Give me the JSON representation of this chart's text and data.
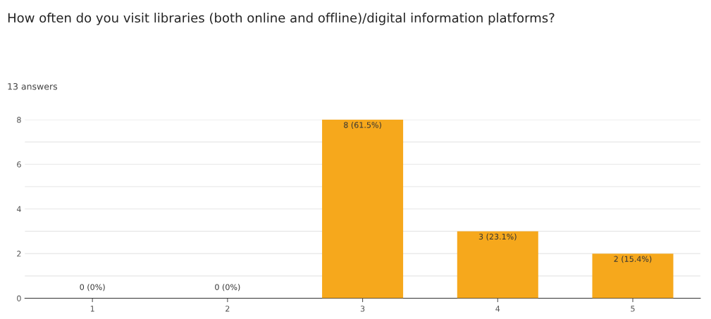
{
  "chart_data": {
    "type": "bar",
    "title": "How often do you visit libraries (both online and offline)/digital information platforms?",
    "subtitle": "13 answers",
    "categories": [
      "1",
      "2",
      "3",
      "4",
      "5"
    ],
    "values": [
      0,
      0,
      8,
      3,
      2
    ],
    "value_labels": [
      "0 (0%)",
      "0 (0%)",
      "8 (61.5%)",
      "3 (23.1%)",
      "2 (15.4%)"
    ],
    "color": "#f6a81c",
    "ylim": [
      0,
      8
    ],
    "yticks": [
      0,
      {
        "value": 1,
        "label": null
      },
      2,
      {
        "value": 3,
        "label": null
      },
      4,
      {
        "value": 5,
        "label": null
      },
      6,
      {
        "value": 7,
        "label": null
      },
      8
    ],
    "grid": "y"
  }
}
